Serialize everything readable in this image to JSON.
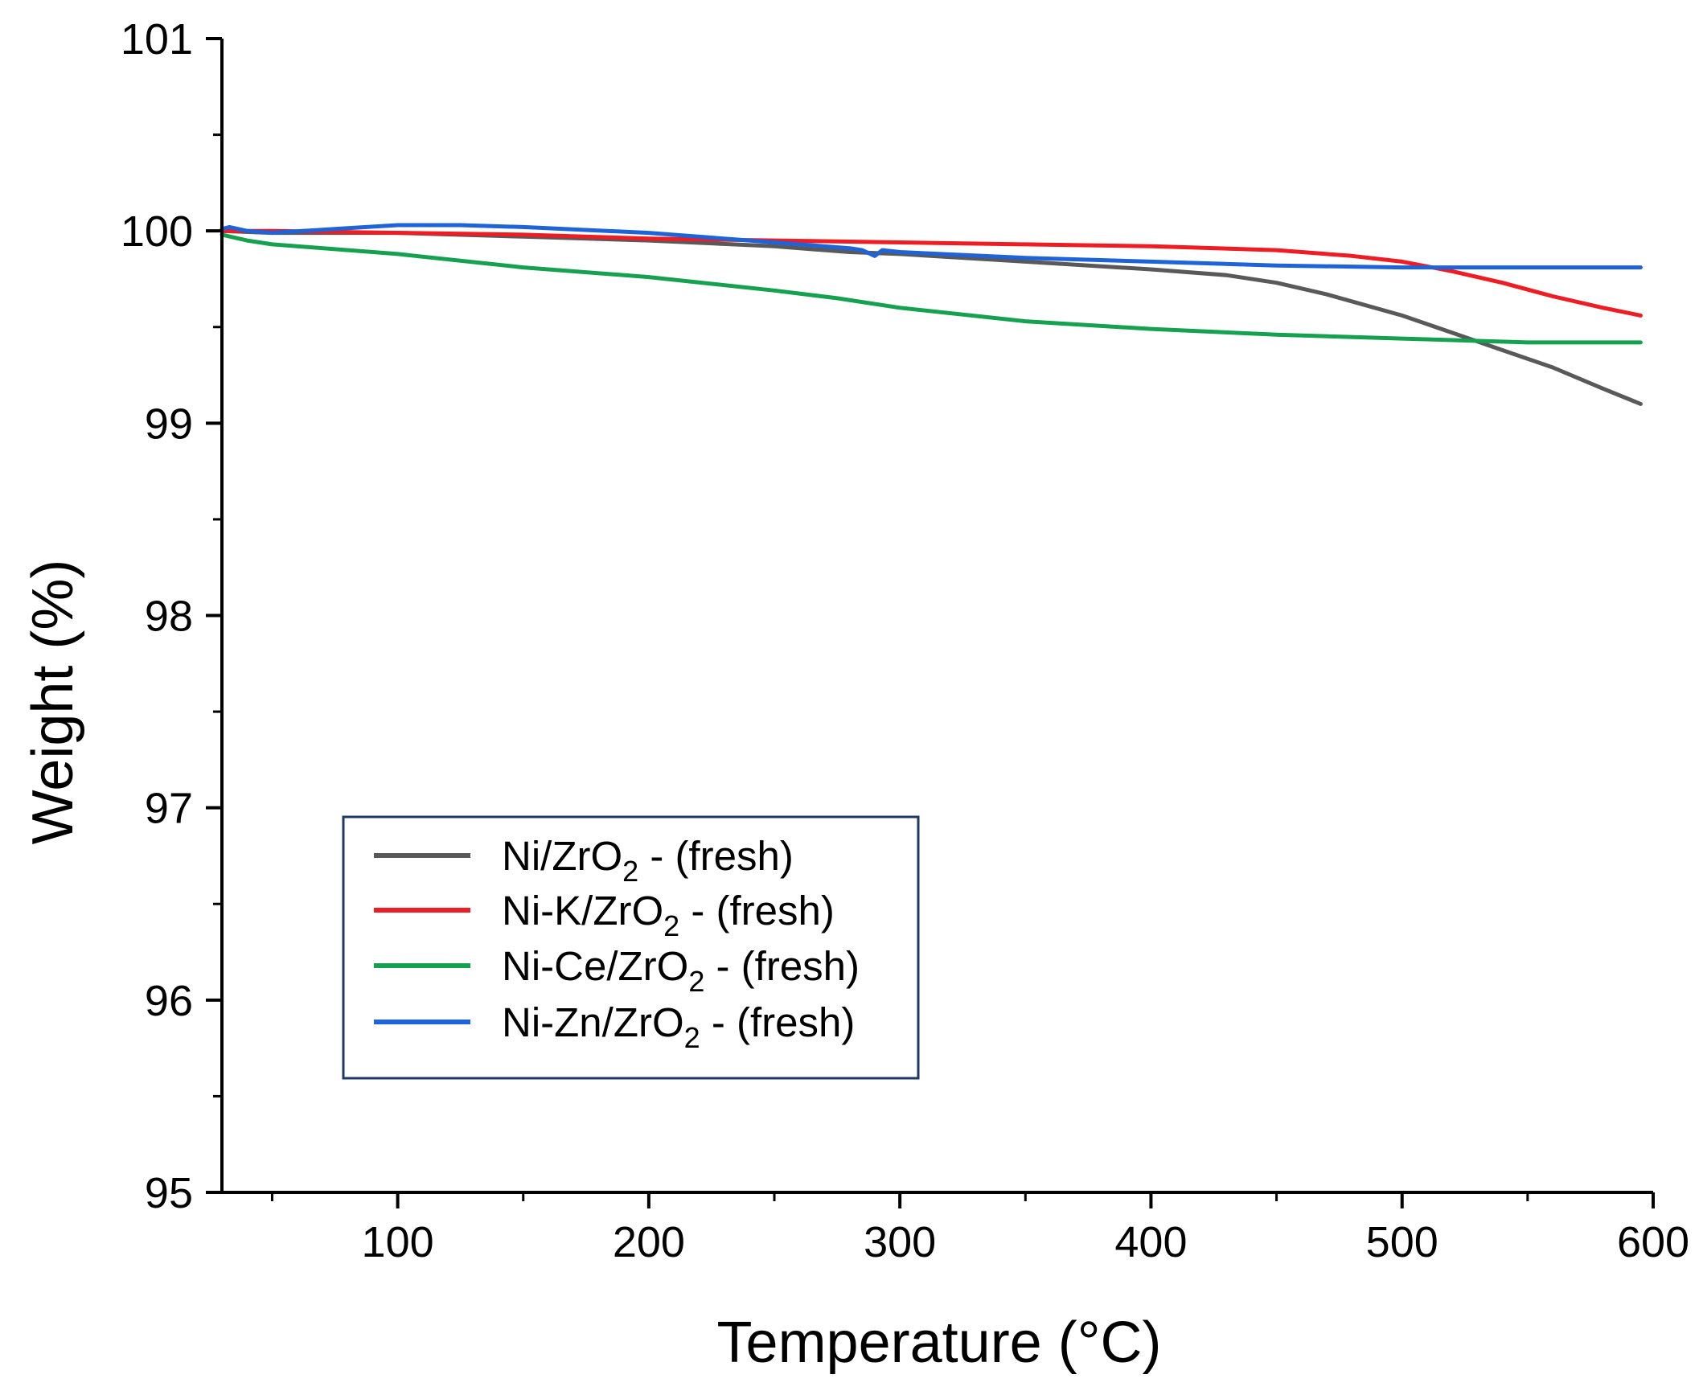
{
  "chart_data": {
    "type": "line",
    "title": "",
    "xlabel": "Temperature (°C)",
    "ylabel": "Weight (%)",
    "xlim": [
      30,
      600
    ],
    "ylim": [
      95,
      101
    ],
    "xticks": [
      100,
      200,
      300,
      400,
      500,
      600
    ],
    "yticks": [
      95,
      96,
      97,
      98,
      99,
      100,
      101
    ],
    "grid": false,
    "legend_position": "lower-left",
    "series": [
      {
        "name": "Ni/ZrO2 - (fresh)",
        "label_parts": [
          "Ni/ZrO",
          "2",
          " - (fresh)"
        ],
        "color": "#595959",
        "x": [
          30,
          50,
          100,
          150,
          200,
          250,
          280,
          300,
          350,
          400,
          430,
          450,
          470,
          500,
          520,
          540,
          560,
          580,
          595
        ],
        "y": [
          100.0,
          99.99,
          99.99,
          99.97,
          99.95,
          99.92,
          99.89,
          99.88,
          99.84,
          99.8,
          99.77,
          99.73,
          99.67,
          99.56,
          99.47,
          99.38,
          99.29,
          99.18,
          99.1
        ]
      },
      {
        "name": "Ni-K/ZrO2 - (fresh)",
        "label_parts": [
          "Ni-K/ZrO",
          "2",
          " - (fresh)"
        ],
        "color": "#ee1c23",
        "x": [
          30,
          50,
          100,
          150,
          200,
          250,
          300,
          350,
          400,
          450,
          480,
          500,
          520,
          540,
          560,
          580,
          595
        ],
        "y": [
          100.0,
          100.0,
          99.99,
          99.98,
          99.96,
          99.95,
          99.94,
          99.93,
          99.92,
          99.9,
          99.87,
          99.84,
          99.79,
          99.73,
          99.66,
          99.6,
          99.56
        ]
      },
      {
        "name": "Ni-Ce/ZrO2 - (fresh)",
        "label_parts": [
          "Ni-Ce/ZrO",
          "2",
          " - (fresh)"
        ],
        "color": "#15a150",
        "x": [
          30,
          40,
          50,
          100,
          150,
          200,
          250,
          275,
          300,
          350,
          400,
          450,
          500,
          550,
          595
        ],
        "y": [
          99.98,
          99.95,
          99.93,
          99.88,
          99.81,
          99.76,
          99.69,
          99.65,
          99.6,
          99.53,
          99.49,
          99.46,
          99.44,
          99.42,
          99.42
        ]
      },
      {
        "name": "Ni-Zn/ZrO2 - (fresh)",
        "label_parts": [
          "Ni-Zn/ZrO",
          "2",
          " - (fresh)"
        ],
        "color": "#1e63d8",
        "x": [
          30,
          33,
          40,
          50,
          75,
          100,
          125,
          150,
          200,
          250,
          280,
          285,
          290,
          293,
          300,
          350,
          400,
          450,
          500,
          550,
          595
        ],
        "y": [
          100.01,
          100.02,
          100.0,
          99.99,
          100.01,
          100.03,
          100.03,
          100.02,
          99.99,
          99.94,
          99.91,
          99.9,
          99.87,
          99.9,
          99.89,
          99.86,
          99.84,
          99.82,
          99.81,
          99.81,
          99.81
        ]
      }
    ]
  }
}
